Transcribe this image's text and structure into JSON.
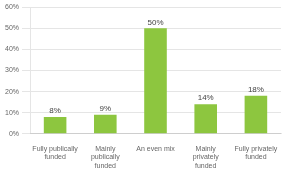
{
  "chart_data": {
    "type": "bar",
    "categories": [
      "Fully publically\nfunded",
      "Mainly\npublically\nfunded",
      "An even mix",
      "Mainly\nprivately\nfunded",
      "Fully privately\nfunded"
    ],
    "values": [
      8,
      9,
      50,
      14,
      18
    ],
    "value_labels": [
      "8%",
      "9%",
      "50%",
      "14%",
      "18%"
    ],
    "data_labels": true,
    "color": "#8dc63f",
    "ylim": [
      0,
      60
    ],
    "yticks": [
      {
        "value": 0,
        "label": "0%"
      },
      {
        "value": 10,
        "label": "10%"
      },
      {
        "value": 20,
        "label": "20%"
      },
      {
        "value": 30,
        "label": "30%"
      },
      {
        "value": 40,
        "label": "40%"
      },
      {
        "value": 50,
        "label": "50%"
      },
      {
        "value": 60,
        "label": "60%"
      }
    ],
    "grid": true
  }
}
